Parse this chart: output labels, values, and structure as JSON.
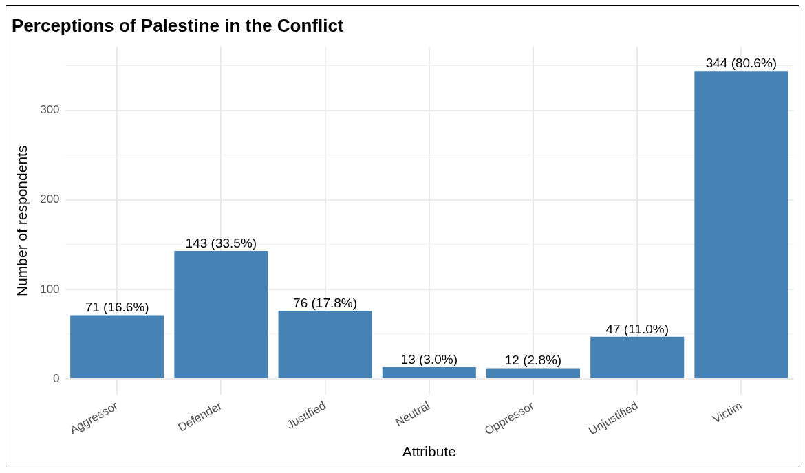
{
  "chart_data": {
    "type": "bar",
    "title": "Perceptions of Palestine in the Conflict",
    "xlabel": "Attribute",
    "ylabel": "Number of respondents",
    "categories": [
      "Aggressor",
      "Defender",
      "Justified",
      "Neutral",
      "Oppressor",
      "Unjustified",
      "Victim"
    ],
    "values": [
      71,
      143,
      76,
      13,
      12,
      47,
      344
    ],
    "value_labels": [
      "71 (16.6%)",
      "143 (33.5%)",
      "76 (17.8%)",
      "13 (3.0%)",
      "12 (2.8%)",
      "47 (11.0%)",
      "344 (80.6%)"
    ],
    "color": "#4682b4",
    "ylim": [
      -18,
      371
    ],
    "yticks": [
      0,
      {
        "value": 50,
        "label": null
      },
      100,
      {
        "value": 150,
        "label": null
      },
      200,
      {
        "value": 250,
        "label": null
      },
      300,
      {
        "value": 350,
        "label": null
      }
    ],
    "grid": true,
    "legend": false
  }
}
